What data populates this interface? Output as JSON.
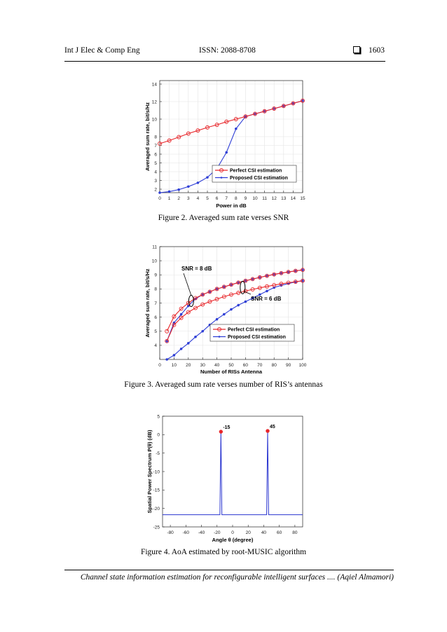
{
  "header": {
    "journal": "Int J Elec & Comp Eng",
    "issn": "ISSN: 2088-8708",
    "box_icon": "square-box-icon",
    "page": "1603"
  },
  "figures": [
    {
      "caption": "Figure 2. Averaged sum rate verses SNR"
    },
    {
      "caption": "Figure 3. Averaged sum rate verses number of RIS’s antennas"
    },
    {
      "caption": "Figure 4. AoA estimated by root-MUSIC algorithm"
    }
  ],
  "footer": {
    "text": "Channel state information estimation for reconfigurable intelligent surfaces .... (Aqiel Almamori)"
  },
  "colors": {
    "perfect": "#e8262a",
    "proposed": "#2f3fd6",
    "music": "#2a35d0"
  },
  "chart_data": [
    {
      "type": "line",
      "xlabel": "Power in dB",
      "ylabel": "Averaged sum rate, bit/s/Hz",
      "xlim": [
        0,
        15
      ],
      "ylim": [
        1.6,
        14.4
      ],
      "xticks": [
        0,
        1,
        2,
        3,
        4,
        5,
        6,
        7,
        8,
        9,
        10,
        11,
        12,
        13,
        14,
        15
      ],
      "yticks": [
        2,
        3,
        4,
        5,
        6,
        7,
        8,
        10,
        12,
        14
      ],
      "grid": true,
      "legend": "bottom-right",
      "x": [
        0,
        1,
        2,
        3,
        4,
        5,
        6,
        7,
        8,
        9,
        10,
        11,
        12,
        13,
        14,
        15
      ],
      "series": [
        {
          "name": "Perfect CSI estimation",
          "values": [
            7.2,
            7.55,
            7.95,
            8.35,
            8.7,
            9.05,
            9.35,
            9.7,
            10.0,
            10.3,
            10.6,
            10.9,
            11.2,
            11.5,
            11.8,
            12.1
          ]
        },
        {
          "name": "Proposed CSI estimation",
          "values": [
            1.6,
            1.73,
            1.95,
            2.3,
            2.73,
            3.35,
            4.35,
            6.2,
            8.9,
            10.3,
            10.6,
            10.9,
            11.2,
            11.5,
            11.8,
            12.1
          ]
        }
      ]
    },
    {
      "type": "line",
      "xlabel": "Number of RISs Antenna",
      "ylabel": "Averaged sum rate, bit/s/Hz",
      "xlim": [
        0,
        100
      ],
      "ylim": [
        3,
        11
      ],
      "xticks": [
        0,
        10,
        20,
        30,
        40,
        50,
        60,
        70,
        80,
        90,
        100
      ],
      "yticks": [
        4,
        5,
        6,
        7,
        8,
        9,
        10,
        11
      ],
      "grid": true,
      "legend": "bottom-right",
      "annotations": [
        "SNR = 8 dB",
        "SNR = 6 dB"
      ],
      "x": [
        5,
        10,
        15,
        20,
        25,
        30,
        35,
        40,
        45,
        50,
        55,
        60,
        65,
        70,
        75,
        80,
        85,
        90,
        95,
        100
      ],
      "series": [
        {
          "name": "Perfect CSI estimation",
          "values": [
            5.0,
            6.05,
            6.6,
            7.0,
            7.35,
            7.6,
            7.8,
            8.0,
            8.15,
            8.3,
            8.45,
            8.58,
            8.7,
            8.82,
            8.93,
            9.03,
            9.12,
            9.2,
            9.28,
            9.35
          ]
        },
        {
          "name": "Perfect CSI estimation",
          "values": [
            4.3,
            5.45,
            5.95,
            6.35,
            6.65,
            6.9,
            7.1,
            7.28,
            7.45,
            7.6,
            7.72,
            7.85,
            7.97,
            8.08,
            8.18,
            8.27,
            8.36,
            8.44,
            8.51,
            8.58
          ]
        },
        {
          "name": "Proposed CSI estimation",
          "values": [
            4.3,
            5.6,
            6.2,
            6.8,
            7.3,
            7.6,
            7.8,
            8.0,
            8.15,
            8.3,
            8.45,
            8.58,
            8.7,
            8.82,
            8.93,
            9.03,
            9.12,
            9.2,
            9.28,
            9.35
          ]
        },
        {
          "name": "Proposed CSI estimation",
          "values": [
            3.0,
            3.3,
            3.75,
            4.15,
            4.6,
            5.0,
            5.45,
            5.85,
            6.2,
            6.55,
            6.85,
            7.1,
            7.35,
            7.6,
            7.85,
            8.1,
            8.25,
            8.38,
            8.5,
            8.58
          ]
        }
      ]
    },
    {
      "type": "line",
      "xlabel": "Angle θ (degree)",
      "ylabel": "Spatial Power Spectrum P(θ) (dB)",
      "xlim": [
        -90,
        90
      ],
      "ylim": [
        -25,
        5
      ],
      "xticks": [
        -80,
        -60,
        -40,
        -20,
        0,
        20,
        40,
        60,
        80
      ],
      "yticks": [
        -25,
        -20,
        -15,
        -10,
        -5,
        0,
        5
      ],
      "grid": false,
      "baseline": -21.7,
      "peaks": [
        {
          "x": -15,
          "y": 0.8,
          "label": "-15"
        },
        {
          "x": 45,
          "y": 1.0,
          "label": "45"
        }
      ]
    }
  ]
}
